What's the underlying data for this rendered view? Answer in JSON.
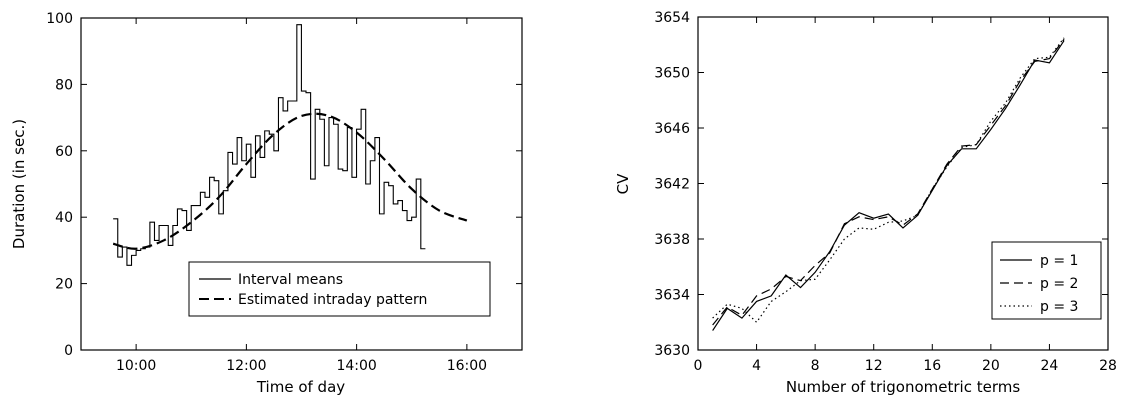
{
  "chart_data": [
    {
      "type": "line",
      "xlabel": "Time of day",
      "ylabel": "Duration (in sec.)",
      "xlim": [
        9.0,
        17.0
      ],
      "ylim": [
        0,
        100
      ],
      "xticks": [
        {
          "value": 10,
          "label": "10:00"
        },
        {
          "value": 12,
          "label": "12:00"
        },
        {
          "value": 14,
          "label": "14:00"
        },
        {
          "value": 16,
          "label": "16:00"
        }
      ],
      "yticks": [
        0,
        20,
        40,
        60,
        80,
        100
      ],
      "legend_position": "bottom-right",
      "series": [
        {
          "name": "Interval means",
          "style": "step-solid",
          "bin_width": 0.0833,
          "x_start": 9.5833,
          "values": [
            39.5,
            28,
            31,
            25.5,
            28.5,
            30,
            30.5,
            31,
            38.5,
            33,
            37.5,
            37.5,
            31.5,
            37.5,
            42.5,
            42,
            36,
            43.5,
            43.5,
            47.5,
            46,
            52,
            51,
            41,
            48,
            59.5,
            56,
            64,
            57,
            62,
            52,
            64.5,
            58,
            66,
            65,
            60,
            76,
            72,
            75,
            75,
            98,
            78,
            77.5,
            51.5,
            72.5,
            69.5,
            55.5,
            70,
            68,
            54.5,
            54,
            67,
            52,
            66.5,
            72.5,
            50,
            57,
            64,
            41,
            50.5,
            49.5,
            44,
            45,
            42,
            39,
            40,
            51.5,
            30.5
          ]
        },
        {
          "name": "Estimated intraday pattern",
          "style": "dashed",
          "x": [
            9.583,
            10.0,
            10.5,
            11.0,
            11.5,
            12.0,
            12.5,
            13.0,
            13.5,
            14.0,
            14.5,
            15.0,
            15.5,
            16.0
          ],
          "values": [
            32,
            30.5,
            33,
            38.5,
            46,
            56,
            65,
            70.5,
            70.5,
            65.5,
            57.5,
            48.5,
            42,
            39
          ]
        }
      ]
    },
    {
      "type": "line",
      "xlabel": "Number of trigonometric terms",
      "ylabel": "CV",
      "xlim": [
        0,
        28
      ],
      "ylim": [
        3630,
        3654
      ],
      "xticks": [
        0,
        4,
        8,
        12,
        16,
        20,
        24,
        28
      ],
      "yticks": [
        3630,
        3634,
        3638,
        3642,
        3646,
        3650,
        3654
      ],
      "legend_position": "bottom-right",
      "x": [
        1,
        2,
        3,
        4,
        5,
        6,
        7,
        8,
        9,
        10,
        11,
        12,
        13,
        14,
        15,
        16,
        17,
        18,
        19,
        20,
        21,
        22,
        23,
        24,
        25
      ],
      "series": [
        {
          "name": "p = 1",
          "style": "solid",
          "values": [
            3631.4,
            3633.0,
            3632.3,
            3633.5,
            3633.9,
            3635.4,
            3634.5,
            3635.6,
            3637.1,
            3639.0,
            3639.9,
            3639.5,
            3639.8,
            3638.8,
            3639.7,
            3641.5,
            3643.3,
            3644.5,
            3644.5,
            3645.9,
            3647.4,
            3649.1,
            3650.9,
            3650.7,
            3652.3
          ]
        },
        {
          "name": "p = 2",
          "style": "dashed",
          "values": [
            3631.8,
            3633.1,
            3632.5,
            3633.9,
            3634.4,
            3635.3,
            3635.0,
            3636.1,
            3637.0,
            3639.1,
            3639.6,
            3639.4,
            3639.6,
            3639.0,
            3639.8,
            3641.6,
            3643.4,
            3644.7,
            3644.8,
            3646.2,
            3647.6,
            3649.4,
            3650.8,
            3651.0,
            3652.4
          ]
        },
        {
          "name": "p = 3",
          "style": "dotted",
          "values": [
            3632.3,
            3633.3,
            3633.0,
            3632.0,
            3633.5,
            3634.2,
            3635.0,
            3635.1,
            3636.5,
            3638.0,
            3638.8,
            3638.7,
            3639.2,
            3639.3,
            3639.7,
            3641.6,
            3643.2,
            3644.6,
            3644.8,
            3646.5,
            3647.8,
            3649.6,
            3651.0,
            3651.1,
            3652.5
          ]
        }
      ]
    }
  ]
}
